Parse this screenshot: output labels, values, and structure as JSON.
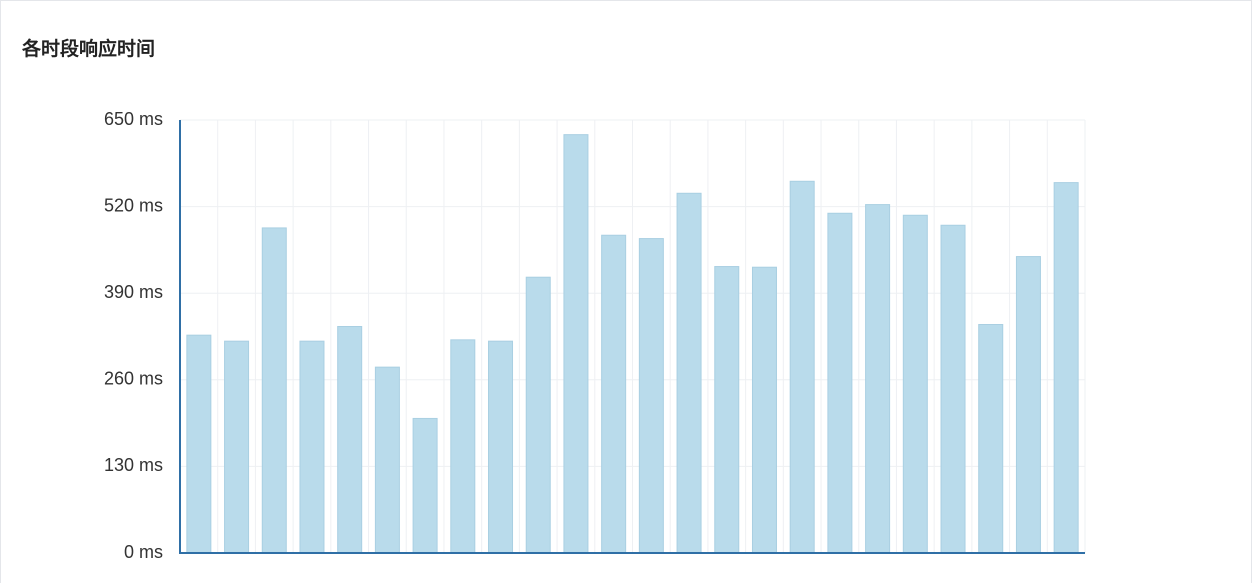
{
  "chart_data": {
    "type": "bar",
    "title": "各时段响应时间",
    "categories": [
      null,
      null,
      null,
      null,
      null,
      null,
      null,
      null,
      null,
      null,
      null,
      null,
      null,
      null,
      null,
      null,
      null,
      null,
      null,
      null,
      null,
      null,
      null,
      null
    ],
    "values": [
      327,
      318,
      488,
      318,
      340,
      279,
      202,
      320,
      318,
      414,
      628,
      477,
      472,
      540,
      430,
      429,
      558,
      510,
      523,
      507,
      492,
      343,
      445,
      556
    ],
    "color": "#b9dbeb",
    "ylim": [
      0,
      650
    ],
    "yticks": [
      {
        "value": 0,
        "label": "0 ms"
      },
      {
        "value": 130,
        "label": "130 ms"
      },
      {
        "value": 260,
        "label": "260 ms"
      },
      {
        "value": 390,
        "label": "390 ms"
      },
      {
        "value": 520,
        "label": "520 ms"
      },
      {
        "value": 650,
        "label": "650 ms"
      }
    ],
    "grid": true
  }
}
